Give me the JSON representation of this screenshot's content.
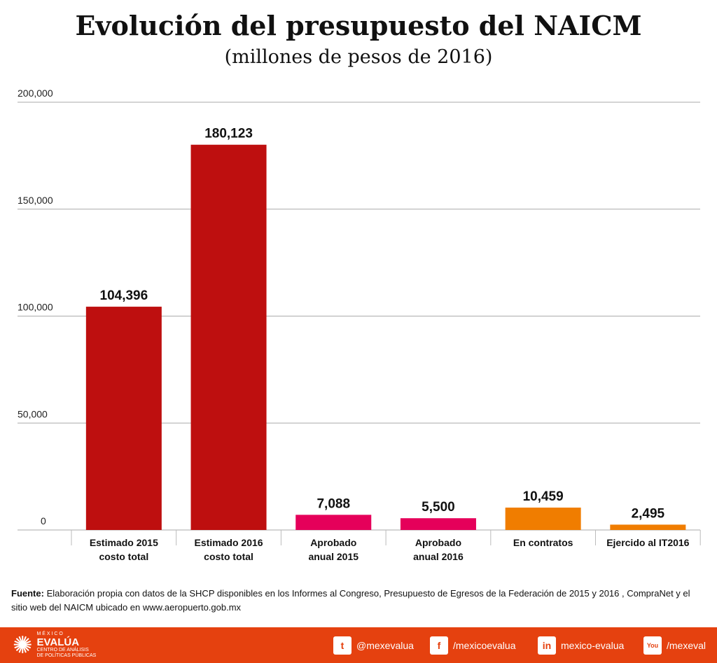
{
  "chart_data": {
    "type": "bar",
    "title": "Evolución del presupuesto del NAICM",
    "subtitle": "(millones de pesos de 2016)",
    "categories": [
      [
        "Estimado 2015",
        "costo total"
      ],
      [
        "Estimado 2016",
        "costo total"
      ],
      [
        "Aprobado",
        "anual 2015"
      ],
      [
        "Aprobado",
        "anual 2016"
      ],
      [
        "En contratos",
        ""
      ],
      [
        "Ejercido al IT2016",
        ""
      ]
    ],
    "values": [
      104396,
      180123,
      7088,
      5500,
      10459,
      2495
    ],
    "value_labels": [
      "104,396",
      "180,123",
      "7,088",
      "5,500",
      "10,459",
      "2,495"
    ],
    "colors": [
      "#be0f0f",
      "#be0f0f",
      "#e5005a",
      "#e5005a",
      "#f07d00",
      "#f07d00"
    ],
    "yticks": [
      0,
      50000,
      100000,
      150000,
      200000
    ],
    "ytick_labels": [
      "0",
      "50,000",
      "100,000",
      "150,000",
      "200,000"
    ],
    "ylim": [
      0,
      200000
    ],
    "grid": true,
    "xlabel": "",
    "ylabel": ""
  },
  "source": {
    "label": "Fuente:",
    "text": " Elaboración propia con datos de la SHCP disponibles en los Informes al Congreso, Presupuesto de Egresos de la Federación de 2015 y 2016 , CompraNet y el sitio web del NAICM ubicado en  www.aeropuerto.gob.mx"
  },
  "footer": {
    "logo_top": "M É X I C O",
    "logo_name": "EVALÚA",
    "logo_sub1": "CENTRO DE ANÁLISIS",
    "logo_sub2": "DE POLÍTICAS PÚBLICAS",
    "social": [
      {
        "icon": "twitter-icon",
        "glyph": "t",
        "label": "@mexevalua"
      },
      {
        "icon": "facebook-icon",
        "glyph": "f",
        "label": "/mexicoevalua"
      },
      {
        "icon": "linkedin-icon",
        "glyph": "in",
        "label": "mexico-evalua"
      },
      {
        "icon": "youtube-icon",
        "glyph": "You",
        "label": "/mexeval"
      }
    ]
  }
}
